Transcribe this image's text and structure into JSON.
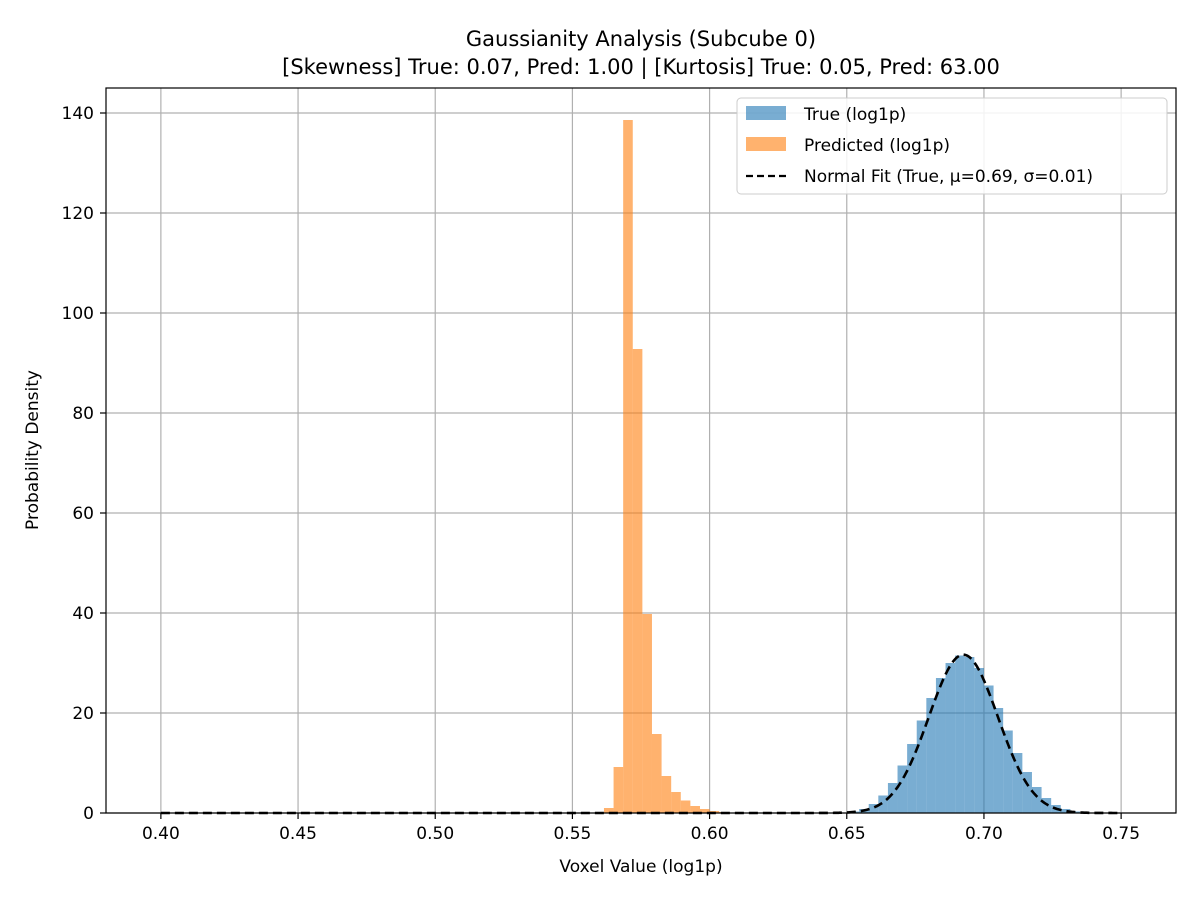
{
  "chart_data": {
    "type": "histogram",
    "title": "Gaussianity Analysis (Subcube 0)",
    "subtitle": "[Skewness] True: 0.07, Pred: 1.00 | [Kurtosis] True: 0.05, Pred: 63.00",
    "xlabel": "Voxel Value (log1p)",
    "ylabel": "Probability Density",
    "xlim": [
      0.38,
      0.77
    ],
    "ylim": [
      0,
      145
    ],
    "xticks": [
      0.4,
      0.45,
      0.5,
      0.55,
      0.6,
      0.65,
      0.7,
      0.75
    ],
    "xtick_labels": [
      "0.40",
      "0.45",
      "0.50",
      "0.55",
      "0.60",
      "0.65",
      "0.70",
      "0.75"
    ],
    "yticks": [
      0,
      20,
      40,
      60,
      80,
      100,
      120,
      140
    ],
    "ytick_labels": [
      "0",
      "20",
      "40",
      "60",
      "80",
      "100",
      "120",
      "140"
    ],
    "grid": true,
    "legend_position": "top-right",
    "colors": {
      "true": "#1f77b4",
      "predicted": "#ff7f0e",
      "fit": "#000000"
    },
    "series": [
      {
        "name": "True (log1p)",
        "kind": "histogram",
        "alpha": 0.6,
        "bin_width": 0.0035,
        "bin_start": 0.6475,
        "values": [
          0.1,
          0.3,
          0.8,
          1.8,
          3.5,
          6.0,
          9.5,
          13.8,
          18.5,
          23.0,
          27.0,
          30.0,
          31.5,
          31.2,
          29.0,
          25.5,
          21.0,
          16.5,
          12.0,
          8.2,
          5.2,
          3.0,
          1.6,
          0.8,
          0.3,
          0.1
        ]
      },
      {
        "name": "Predicted (log1p)",
        "kind": "histogram",
        "alpha": 0.6,
        "bin_width": 0.0035,
        "bin_start": 0.5615,
        "values": [
          1.0,
          9.2,
          138.6,
          92.8,
          39.8,
          15.8,
          7.4,
          4.2,
          2.5,
          1.4,
          0.8,
          0.4,
          0.2
        ]
      },
      {
        "name": "Normal Fit (True, μ=0.69, σ=0.01)",
        "kind": "line",
        "style": "dashed",
        "mu": 0.6925,
        "sigma": 0.0126,
        "x_range": [
          0.4,
          0.75
        ]
      }
    ]
  }
}
